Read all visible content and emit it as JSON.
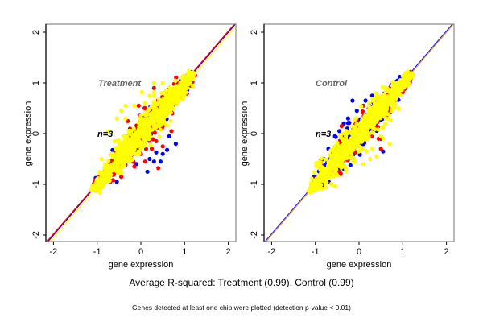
{
  "chart_data": [
    {
      "type": "scatter",
      "panel": "left",
      "label": "Treatment",
      "annotation": "n=3",
      "xlabel": "gene expression",
      "ylabel": "gene expression",
      "xlim": [
        -2.2,
        2.2
      ],
      "ylim": [
        -2.2,
        2.2
      ],
      "xticks": [
        "-2",
        "-1",
        "0",
        "1",
        "2"
      ],
      "yticks": [
        "-2",
        "-1",
        "0",
        "1",
        "2"
      ],
      "grid": false,
      "reference_lines": [
        {
          "name": "identity-line-blue",
          "slope": 1,
          "intercept": 0,
          "color": "#0000ff"
        },
        {
          "name": "identity-line-red",
          "slope": 1,
          "intercept": 0.02,
          "color": "#ff0000"
        },
        {
          "name": "identity-line-yellow",
          "slope": 1,
          "intercept": -0.05,
          "color": "#ffff00"
        }
      ],
      "series": [
        {
          "name": "replicate-blue",
          "color": "#0000ff",
          "cloud": {
            "x_range": [
              -1.1,
              1.2
            ],
            "spread": 0.1
          },
          "outliers": [
            [
              0.35,
              -0.37
            ],
            [
              0.6,
              -0.32
            ],
            [
              0.8,
              -0.2
            ],
            [
              0.65,
              -0.05
            ],
            [
              0.45,
              -0.55
            ],
            [
              0.2,
              -0.5
            ],
            [
              -0.1,
              -0.6
            ],
            [
              0.6,
              0.65
            ],
            [
              0.3,
              -0.55
            ],
            [
              -0.55,
              -0.95
            ],
            [
              0.15,
              -0.75
            ],
            [
              0.5,
              -0.4
            ]
          ]
        },
        {
          "name": "replicate-red",
          "color": "#ff0000",
          "cloud": {
            "x_range": [
              -1.1,
              1.2
            ],
            "spread": 0.12
          },
          "outliers": [
            [
              0.4,
              -0.68
            ],
            [
              -0.05,
              0.55
            ],
            [
              0.6,
              0.45
            ],
            [
              0.25,
              -0.3
            ],
            [
              -0.45,
              -0.85
            ],
            [
              0.1,
              -0.55
            ],
            [
              0.5,
              -0.25
            ],
            [
              0.3,
              0.9
            ],
            [
              -0.3,
              0.25
            ],
            [
              0.7,
              0.05
            ],
            [
              -0.15,
              -0.65
            ],
            [
              0.35,
              -0.15
            ],
            [
              -0.7,
              -0.95
            ]
          ]
        },
        {
          "name": "replicate-yellow",
          "color": "#ffff00",
          "cloud": {
            "x_range": [
              -1.15,
              1.2
            ],
            "spread": 0.14
          },
          "outliers": [
            [
              0.3,
              1.0
            ],
            [
              -0.35,
              0.55
            ],
            [
              -0.55,
              0.3
            ],
            [
              -0.15,
              0.55
            ],
            [
              -0.75,
              0.05
            ],
            [
              0.2,
              0.75
            ],
            [
              -0.45,
              0.45
            ],
            [
              0.0,
              0.35
            ],
            [
              -0.6,
              -0.15
            ],
            [
              0.5,
              1.0
            ],
            [
              -0.35,
              0.3
            ],
            [
              0.1,
              0.6
            ],
            [
              -0.9,
              -0.5
            ]
          ]
        }
      ]
    },
    {
      "type": "scatter",
      "panel": "right",
      "label": "Control",
      "annotation": "n=3",
      "xlabel": "gene expression",
      "ylabel": "gene expression",
      "xlim": [
        -2.2,
        2.2
      ],
      "ylim": [
        -2.2,
        2.2
      ],
      "xticks": [
        "-2",
        "-1",
        "0",
        "1",
        "2"
      ],
      "yticks": [
        "-2",
        "-1",
        "0",
        "1",
        "2"
      ],
      "grid": false,
      "reference_lines": [
        {
          "name": "identity-line-blue",
          "slope": 1,
          "intercept": 0.02,
          "color": "#0000ff"
        },
        {
          "name": "identity-line-orange",
          "slope": 1,
          "intercept": 0,
          "color": "#e0a030"
        }
      ],
      "series": [
        {
          "name": "replicate-blue",
          "color": "#0000ff",
          "cloud": {
            "x_range": [
              -1.1,
              1.2
            ],
            "spread": 0.12
          },
          "outliers": [
            [
              -0.15,
              0.65
            ],
            [
              -0.05,
              0.45
            ],
            [
              0.3,
              0.75
            ],
            [
              -0.25,
              0.3
            ],
            [
              -0.35,
              0.2
            ],
            [
              -0.55,
              -0.05
            ],
            [
              0.5,
              -0.1
            ],
            [
              -0.7,
              -0.3
            ],
            [
              -0.8,
              -0.5
            ],
            [
              0.55,
              -0.35
            ],
            [
              -0.85,
              -1.05
            ],
            [
              0.15,
              0.65
            ],
            [
              -0.45,
              0.05
            ],
            [
              0.35,
              0.6
            ]
          ]
        },
        {
          "name": "replicate-red",
          "color": "#ff0000",
          "cloud": {
            "x_range": [
              -1.1,
              1.2
            ],
            "spread": 0.1
          },
          "outliers": [
            [
              0.5,
              -0.3
            ],
            [
              0.1,
              0.55
            ],
            [
              0.45,
              -0.1
            ],
            [
              -0.4,
              0.15
            ],
            [
              0.6,
              0.75
            ],
            [
              0.35,
              0.25
            ],
            [
              -0.6,
              -0.55
            ]
          ]
        },
        {
          "name": "replicate-yellow",
          "color": "#ffff00",
          "cloud": {
            "x_range": [
              -1.15,
              1.2
            ],
            "spread": 0.15
          },
          "outliers": [
            [
              0.7,
              -0.2
            ],
            [
              0.4,
              -0.45
            ],
            [
              0.1,
              -0.6
            ],
            [
              -0.1,
              -0.55
            ],
            [
              0.55,
              -0.1
            ],
            [
              0.75,
              0.45
            ],
            [
              0.9,
              0.5
            ],
            [
              0.25,
              -0.5
            ],
            [
              0.5,
              -0.05
            ],
            [
              -0.3,
              -0.7
            ],
            [
              0.6,
              0.2
            ],
            [
              0.3,
              -0.3
            ]
          ]
        }
      ]
    }
  ],
  "figure": {
    "title": "Average R-squared: Treatment (0.99), Control (0.99)",
    "subtitle": "Genes detected at least one chip were plotted (detection p-value < 0.01)"
  }
}
